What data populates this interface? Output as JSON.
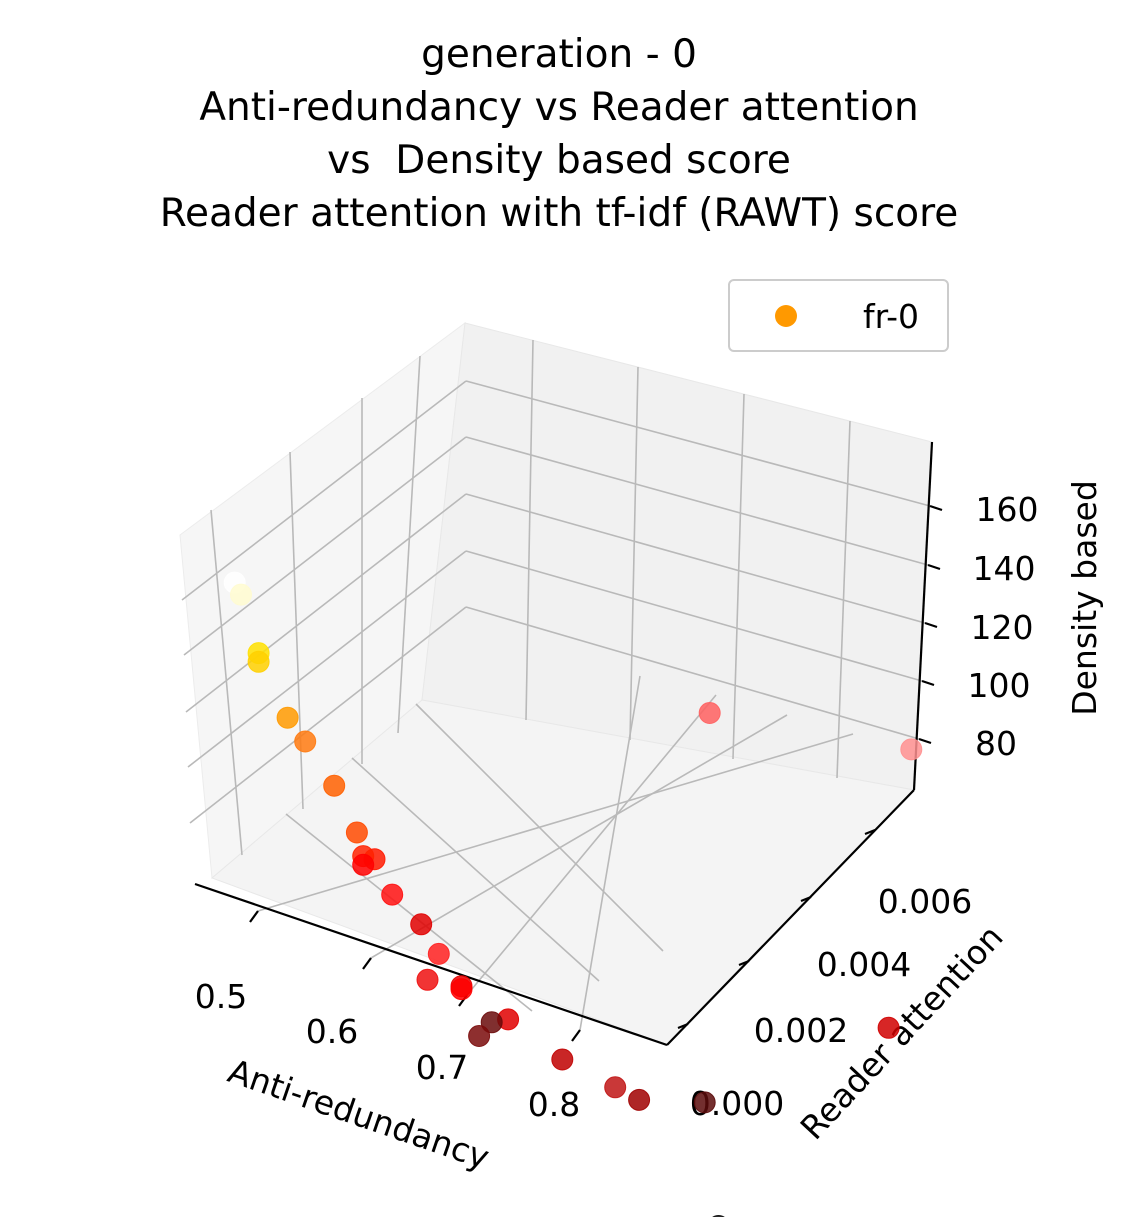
{
  "chart_data": {
    "type": "scatter",
    "projection": "3d",
    "title_lines": [
      "generation - 0",
      "Anti-redundancy vs Reader attention",
      "vs  Density based score",
      "Reader attention with tf-idf (RAWT) score"
    ],
    "xlabel": "Anti-redundancy",
    "ylabel": "Reader attention",
    "zlabel": "Density based",
    "x_ticks": [
      "0.5",
      "0.6",
      "0.7",
      "0.8"
    ],
    "y_ticks": [
      "0.000",
      "0.002",
      "0.004",
      "0.006"
    ],
    "z_ticks": [
      "80",
      "100",
      "120",
      "140",
      "160"
    ],
    "legend": {
      "label": "fr-0",
      "marker_color": "#ff9900",
      "placement": "upper-right"
    },
    "grid": true,
    "colormap": "hot",
    "points": [
      {
        "x": 0.47,
        "y": 0.0,
        "z": 168,
        "color": "#ffffff"
      },
      {
        "x": 0.47,
        "y": 0.0001,
        "z": 163,
        "color": "#fffbd0"
      },
      {
        "x": 0.48,
        "y": 0.0002,
        "z": 145,
        "color": "#ffe000"
      },
      {
        "x": 0.48,
        "y": 0.0002,
        "z": 142,
        "color": "#ffd000"
      },
      {
        "x": 0.5,
        "y": 0.0003,
        "z": 128,
        "color": "#ff9a00"
      },
      {
        "x": 0.51,
        "y": 0.0004,
        "z": 122,
        "color": "#ff7a10"
      },
      {
        "x": 0.53,
        "y": 0.0005,
        "z": 112,
        "color": "#ff6000"
      },
      {
        "x": 0.55,
        "y": 0.0005,
        "z": 102,
        "color": "#ff4a00"
      },
      {
        "x": 0.56,
        "y": 0.0006,
        "z": 95,
        "color": "#ff1a00"
      },
      {
        "x": 0.55,
        "y": 0.0006,
        "z": 93,
        "color": "#ff2200"
      },
      {
        "x": 0.55,
        "y": 0.0006,
        "z": 90,
        "color": "#ff0000"
      },
      {
        "x": 0.57,
        "y": 0.0007,
        "z": 85,
        "color": "#ff1010"
      },
      {
        "x": 0.59,
        "y": 0.0008,
        "z": 80,
        "color": "#e00000"
      },
      {
        "x": 0.6,
        "y": 0.0009,
        "z": 72,
        "color": "#ff2020"
      },
      {
        "x": 0.62,
        "y": 0.0009,
        "z": 67,
        "color": "#e80000"
      },
      {
        "x": 0.62,
        "y": 0.0009,
        "z": 66,
        "color": "#ff0000"
      },
      {
        "x": 0.65,
        "y": 0.0011,
        "z": 63,
        "color": "#e00000"
      },
      {
        "x": 0.59,
        "y": 0.0009,
        "z": 60,
        "color": "#ee1010"
      },
      {
        "x": 0.63,
        "y": 0.0012,
        "z": 55,
        "color": "#6a0a0a"
      },
      {
        "x": 0.63,
        "y": 0.001,
        "z": 52,
        "color": "#7a0a0a"
      },
      {
        "x": 0.67,
        "y": 0.0016,
        "z": 51,
        "color": "#c00000"
      },
      {
        "x": 0.7,
        "y": 0.0019,
        "z": 48,
        "color": "#c01515"
      },
      {
        "x": 0.71,
        "y": 0.0021,
        "z": 45,
        "color": "#a00000"
      },
      {
        "x": 0.74,
        "y": 0.0026,
        "z": 49,
        "color": "#5a0a0a"
      },
      {
        "x": 0.78,
        "y": 0.0048,
        "z": 68,
        "color": "#d00000"
      },
      {
        "x": 0.83,
        "y": 0.0012,
        "z": 46,
        "color": "#0a0a0a"
      },
      {
        "x": 0.6,
        "y": 0.0052,
        "z": 118,
        "color": "#ff6060"
      },
      {
        "x": 0.7,
        "y": 0.0066,
        "z": 124,
        "color": "#ff9090"
      }
    ]
  }
}
